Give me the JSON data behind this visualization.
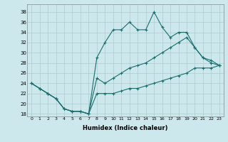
{
  "background_color": "#cce8ec",
  "grid_color": "#aacccc",
  "line_color": "#1a6e6e",
  "xlabel": "Humidex (Indice chaleur)",
  "xlim": [
    -0.5,
    23.5
  ],
  "ylim": [
    17.5,
    39.5
  ],
  "yticks": [
    18,
    20,
    22,
    24,
    26,
    28,
    30,
    32,
    34,
    36,
    38
  ],
  "xticks": [
    0,
    1,
    2,
    3,
    4,
    5,
    6,
    7,
    8,
    9,
    10,
    11,
    12,
    13,
    14,
    15,
    16,
    17,
    18,
    19,
    20,
    21,
    22,
    23
  ],
  "line_top": [
    24,
    23,
    22,
    21,
    19,
    18.5,
    18.5,
    18,
    29,
    32,
    34.5,
    34.5,
    36,
    34.5,
    34.5,
    38,
    35,
    33,
    34,
    34,
    31,
    29,
    28,
    27.5
  ],
  "line_mid": [
    24,
    23,
    22,
    21,
    19,
    18.5,
    18.5,
    18,
    25,
    24,
    25,
    26,
    27,
    27.5,
    28,
    29,
    30,
    31,
    32,
    33,
    31,
    29,
    28.5,
    27.5
  ],
  "line_bot": [
    24,
    23,
    22,
    21,
    19,
    18.5,
    18.5,
    18,
    22,
    22,
    22,
    22.5,
    23,
    23,
    23.5,
    24,
    24.5,
    25,
    25.5,
    26,
    27,
    27,
    27,
    27.5
  ]
}
